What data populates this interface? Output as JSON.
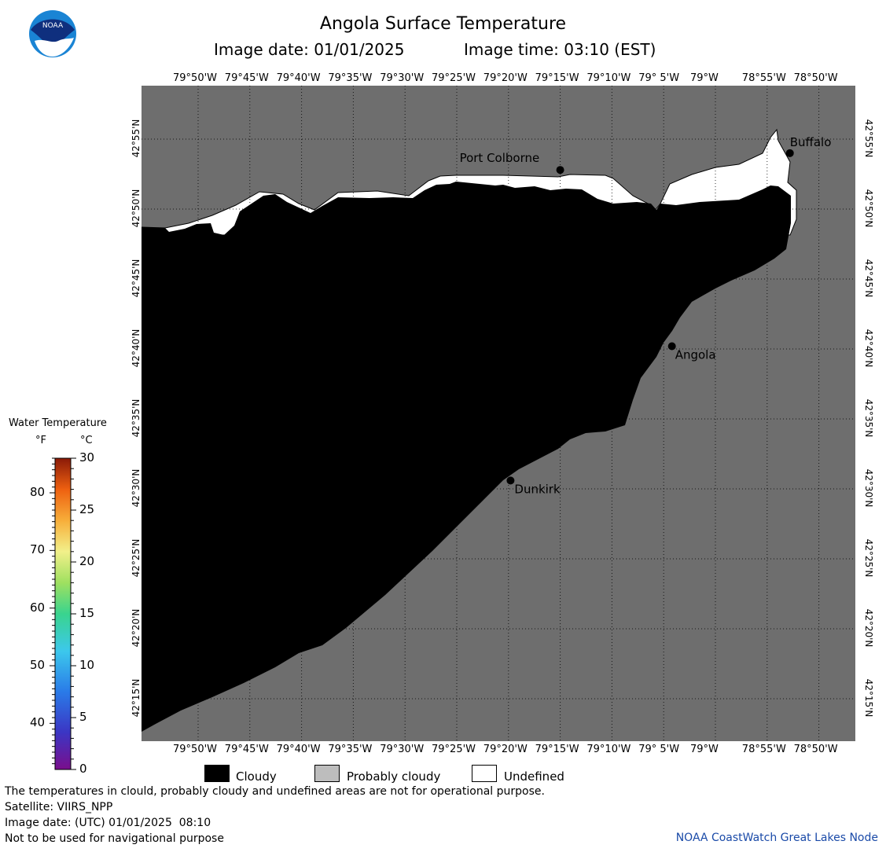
{
  "header": {
    "title": "Angola Surface Temperature",
    "image_date": "Image date: 01/01/2025",
    "image_time": "Image time: 03:10 (EST)"
  },
  "logo": {
    "text": "NOAA"
  },
  "map": {
    "lon_labels": [
      "79°50'W",
      "79°45'W",
      "79°40'W",
      "79°35'W",
      "79°30'W",
      "79°25'W",
      "79°20'W",
      "79°15'W",
      "79°10'W",
      "79° 5'W",
      "79°W",
      "78°55'W",
      "78°50'W"
    ],
    "lat_labels": [
      "42°55'N",
      "42°50'N",
      "42°45'N",
      "42°40'N",
      "42°35'N",
      "42°30'N",
      "42°25'N",
      "42°20'N",
      "42°15'N"
    ],
    "places": [
      {
        "name": "Port Colborne",
        "lon": -79.25,
        "lat": 42.88
      },
      {
        "name": "Buffalo",
        "lon": -78.88,
        "lat": 42.9
      },
      {
        "name": "Angola",
        "lon": -79.07,
        "lat": 42.67
      },
      {
        "name": "Dunkirk",
        "lon": -79.33,
        "lat": 42.51
      }
    ],
    "colors": {
      "land": "#6e6e6e",
      "cloudy": "#000000",
      "undefined": "#ffffff"
    }
  },
  "colorbar": {
    "title": "Water Temperature",
    "unit_f": "°F",
    "unit_c": "°C",
    "f_ticks": [
      "80",
      "70",
      "60",
      "50",
      "40"
    ],
    "c_ticks": [
      "30",
      "25",
      "20",
      "15",
      "10",
      "5",
      "0"
    ]
  },
  "legend": {
    "cloudy": "Cloudy",
    "probably_cloudy": "Probably cloudy",
    "undefined": "Undefined"
  },
  "footer": {
    "note1": "The temperatures in clould, probably cloudy and undefined areas are not for operational purpose.",
    "satellite": "Satellite: VIIRS_NPP",
    "utc_date": "Image date: (UTC) 01/01/2025  08:10",
    "nav_note": "Not to be used for navigational purpose",
    "credit": "NOAA CoastWatch Great Lakes Node"
  }
}
